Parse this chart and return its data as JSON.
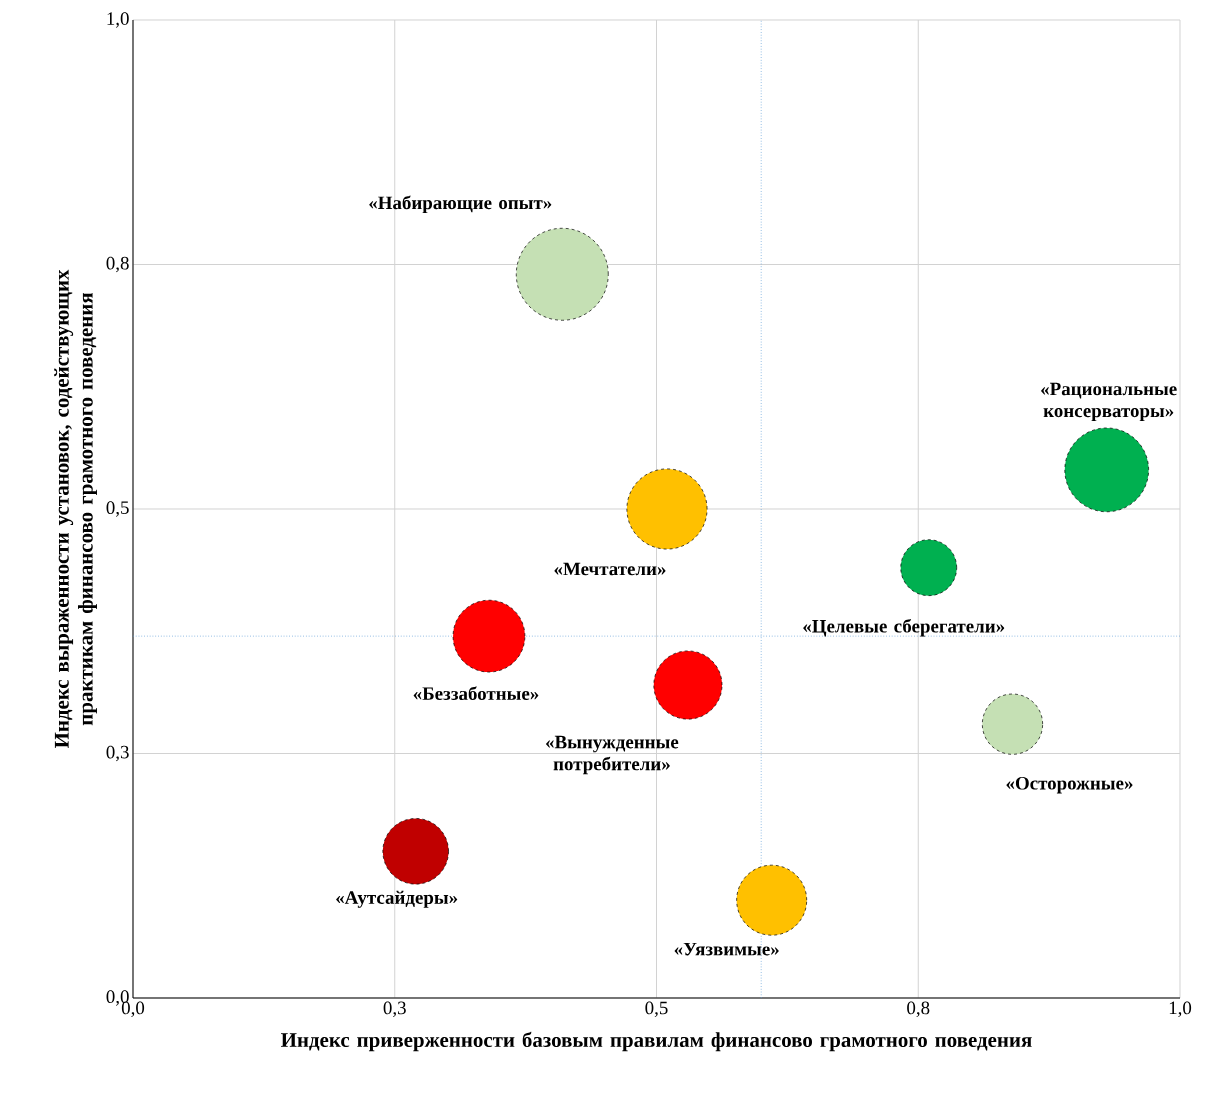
{
  "chart_data": {
    "type": "bubble",
    "xlabel": "Индекс приверженности базовым правилам финансово грамотного поведения",
    "ylabel": "Индекс выраженности установок, содействующих практикам финансово грамотного поведения",
    "xlim": [
      0,
      1
    ],
    "ylim": [
      0,
      1
    ],
    "xticks": [
      {
        "value": 0,
        "label": "0,0"
      },
      {
        "value": 0.25,
        "label": "0,3"
      },
      {
        "value": 0.5,
        "label": "0,5"
      },
      {
        "value": 0.75,
        "label": "0,8"
      },
      {
        "value": 1,
        "label": "1,0"
      }
    ],
    "yticks": [
      {
        "value": 0,
        "label": "0,0"
      },
      {
        "value": 0.25,
        "label": "0,3"
      },
      {
        "value": 0.5,
        "label": "0,5"
      },
      {
        "value": 0.75,
        "label": "0,8"
      },
      {
        "value": 1,
        "label": "1,0"
      }
    ],
    "grid": true,
    "line_style": "dashed",
    "ref_lines": [
      {
        "axis": "x",
        "value": 0.6,
        "color": "#5b9bd5",
        "line_style": "dotted"
      },
      {
        "axis": "y",
        "value": 0.37,
        "color": "#5b9bd5",
        "line_style": "dotted"
      }
    ],
    "series": [
      {
        "name": "«Набирающие опыт»",
        "color": "#c5e0b4",
        "x": [
          0.41
        ],
        "values": [
          0.74
        ],
        "sizes": [
          1
        ]
      },
      {
        "name": "«Рациональные консерваторы»",
        "color": "#00b050",
        "x": [
          0.93
        ],
        "values": [
          0.54
        ],
        "sizes": [
          0.83
        ]
      },
      {
        "name": "«Мечтатели»",
        "color": "#ffc000",
        "x": [
          0.51
        ],
        "values": [
          0.5
        ],
        "sizes": [
          0.76
        ]
      },
      {
        "name": "«Целевые сберегатели»",
        "color": "#00b050",
        "x": [
          0.76
        ],
        "values": [
          0.44
        ],
        "sizes": [
          0.37
        ]
      },
      {
        "name": "«Беззаботные»",
        "color": "#ff0000",
        "x": [
          0.34
        ],
        "values": [
          0.37
        ],
        "sizes": [
          0.61
        ]
      },
      {
        "name": "«Вынужденные потребители»",
        "color": "#ff0000",
        "x": [
          0.53
        ],
        "values": [
          0.32
        ],
        "sizes": [
          0.55
        ]
      },
      {
        "name": "«Осторожные»",
        "color": "#c5e0b4",
        "x": [
          0.84
        ],
        "values": [
          0.28
        ],
        "sizes": [
          0.43
        ]
      },
      {
        "name": "«Аутсайдеры»",
        "color": "#c00000",
        "x": [
          0.27
        ],
        "values": [
          0.15
        ],
        "sizes": [
          0.51
        ]
      },
      {
        "name": "«Уязвимые»",
        "color": "#ffc000",
        "x": [
          0.61
        ],
        "values": [
          0.1
        ],
        "sizes": [
          0.58
        ]
      }
    ]
  }
}
